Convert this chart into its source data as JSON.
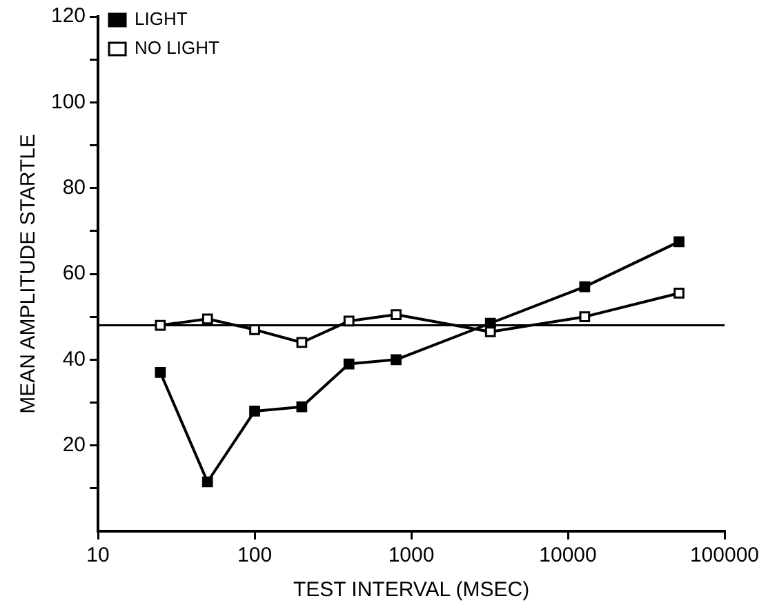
{
  "chart_data": {
    "type": "line",
    "xlabel": "TEST INTERVAL (MSEC)",
    "ylabel": "MEAN AMPLITUDE STARTLE",
    "log": "x",
    "xlim": [
      10,
      100000
    ],
    "xticks": [
      10,
      100,
      1000,
      10000,
      100000
    ],
    "ylim": [
      0,
      120
    ],
    "yticks": [
      {
        "value": 10,
        "label": null
      },
      20,
      {
        "value": 30,
        "label": null
      },
      40,
      {
        "value": 50,
        "label": null
      },
      60,
      {
        "value": 70,
        "label": null
      },
      80,
      {
        "value": 90,
        "label": null
      },
      100,
      {
        "value": 110,
        "label": null
      },
      120
    ],
    "x": [
      25,
      50,
      100,
      200,
      400,
      800,
      3200,
      12800,
      51200
    ],
    "series": [
      {
        "name": "LIGHT",
        "color": "#000000",
        "values": [
          37,
          11.5,
          28,
          29,
          39,
          40,
          48.5,
          57,
          67.5
        ]
      },
      {
        "name": "NO LIGHT",
        "color": "#000000",
        "values": [
          48,
          49.5,
          47,
          44,
          49,
          50.5,
          46.5,
          50,
          55.5
        ]
      }
    ],
    "ref_lines": [
      {
        "axis": "y",
        "value": 48,
        "color": "#000000"
      }
    ],
    "marker": "square",
    "line_style": "solid",
    "grid": false,
    "legend": "top left"
  }
}
